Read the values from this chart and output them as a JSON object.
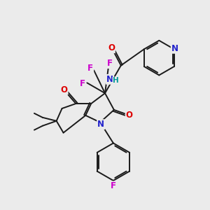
{
  "bg_color": "#ebebeb",
  "C": "#1a1a1a",
  "N": "#2222cc",
  "O": "#dd0000",
  "F": "#cc00cc",
  "H": "#009999",
  "lw": 1.4,
  "fs": 8.5
}
